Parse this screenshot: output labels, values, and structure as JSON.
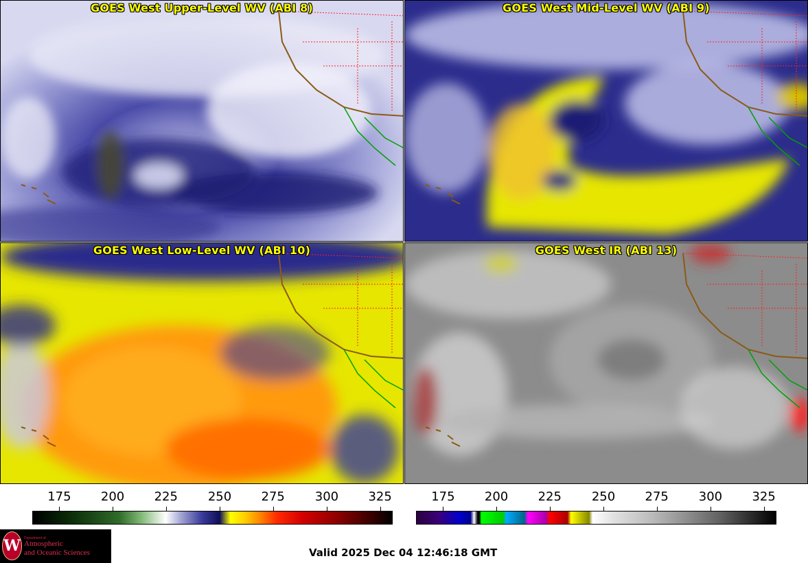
{
  "panels": [
    {
      "id": "upper",
      "title": "GOES West Upper-Level WV (ABI 8)"
    },
    {
      "id": "mid",
      "title": "GOES West Mid-Level WV (ABI 9)"
    },
    {
      "id": "low",
      "title": "GOES West Low-Level WV (ABI 10)"
    },
    {
      "id": "ir",
      "title": "GOES West IR (ABI 13)"
    }
  ],
  "colorbar_wv": {
    "ticks": [
      "175",
      "200",
      "225",
      "250",
      "275",
      "300",
      "325"
    ]
  },
  "colorbar_ir": {
    "ticks": [
      "175",
      "200",
      "225",
      "250",
      "275",
      "300",
      "325"
    ]
  },
  "logo": {
    "dept": "Department of",
    "line1": "Atmospheric",
    "line2": "and Oceanic Sciences",
    "seal_letter": "W"
  },
  "valid_text": "Valid 2025 Dec 04 12:46:18 GMT",
  "colors": {
    "title_text": "#ffff00",
    "coastline": "#8b5a14",
    "state_borders": "#ff2020",
    "mexico_coast": "#00a000"
  }
}
